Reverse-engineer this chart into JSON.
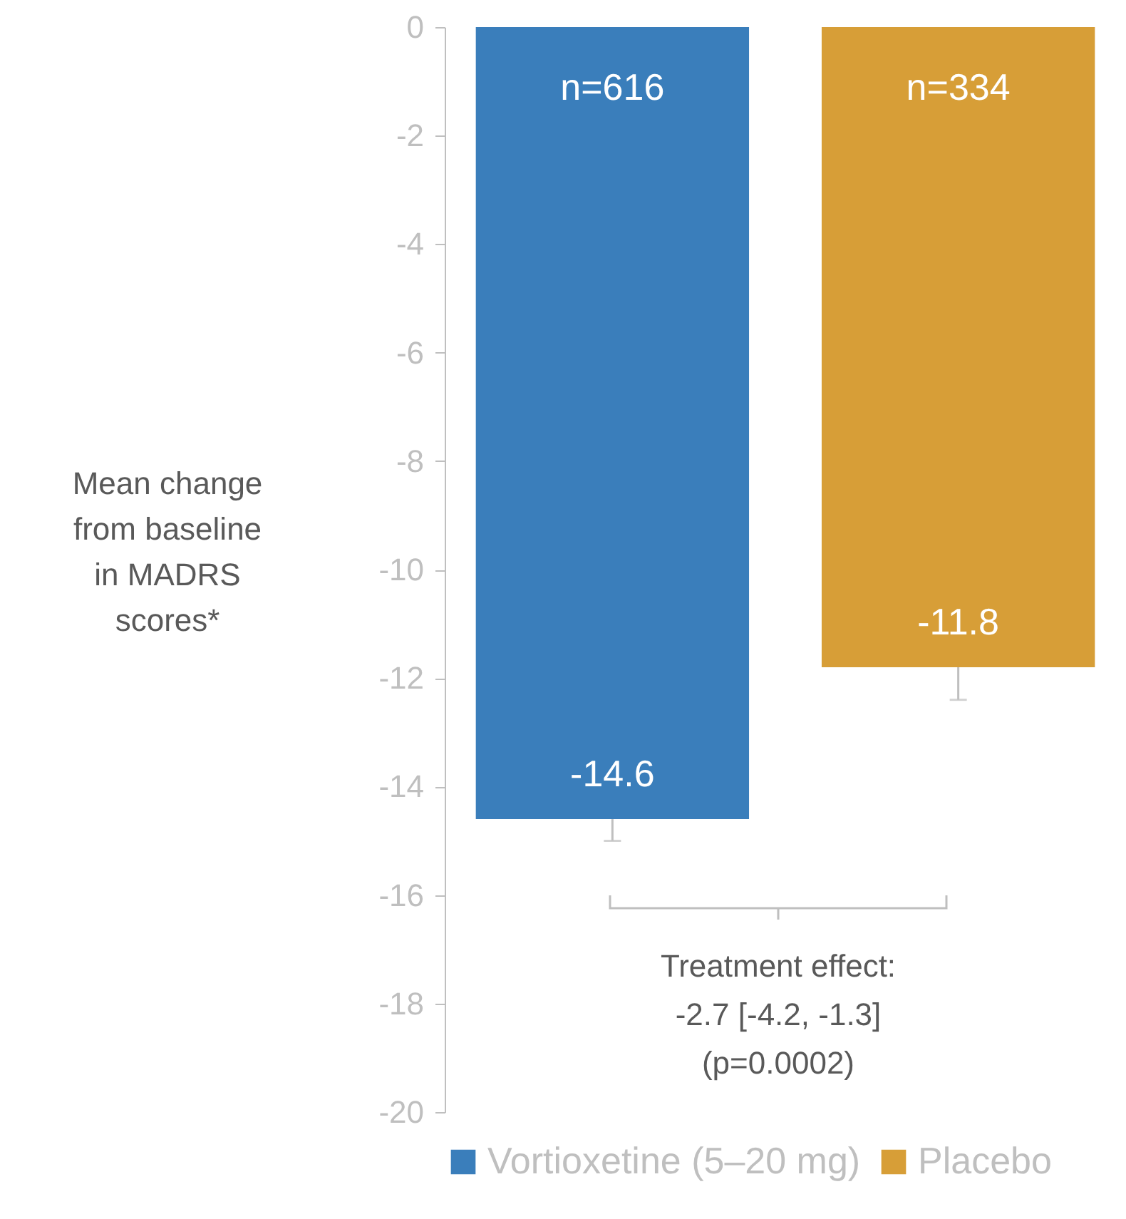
{
  "chart_data": {
    "type": "bar",
    "categories": [
      null
    ],
    "ylabel": "Mean change\nfrom baseline\nin MADRS\nscores*",
    "series": [
      {
        "name": "Vortioxetine (5–20 mg)",
        "color": "#3a7ebb",
        "values": [
          -14.6
        ],
        "errors": [
          [
            -15.0,
            -14.6
          ]
        ]
      },
      {
        "name": "Placebo",
        "color": "#d79e37",
        "values": [
          -11.8
        ],
        "errors": [
          [
            -12.4,
            -11.8
          ]
        ]
      }
    ],
    "ylim": [
      -20,
      0
    ],
    "yticks": [
      0,
      -2,
      -4,
      -6,
      -8,
      -10,
      -12,
      -14,
      -16,
      -18,
      -20
    ],
    "data_labels": true,
    "grid": false,
    "legend": "bottom",
    "annotations": [
      "n=616",
      "n=334",
      "Treatment effect:\n-2.7 [-4.2, -1.3]\n(p=0.0002)"
    ]
  }
}
